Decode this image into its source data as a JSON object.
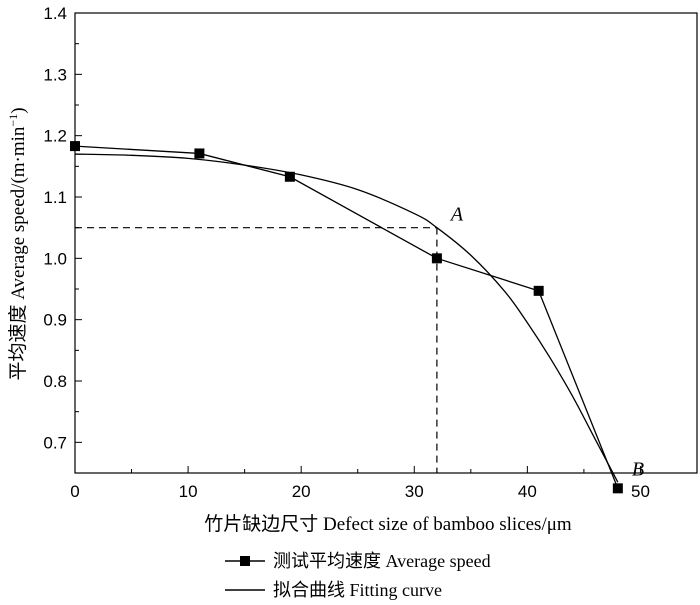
{
  "chart_data": {
    "type": "line",
    "title": "",
    "xlabel": "竹片缺边尺寸 Defect size of bamboo slices/μm",
    "ylabel_main": "平均速度 Average speed/(m·min",
    "ylabel_sup": "−1",
    "ylabel_close": ")",
    "xlim": [
      0,
      55
    ],
    "ylim": [
      0.65,
      1.4
    ],
    "x_ticks": [
      0,
      10,
      20,
      30,
      40,
      50
    ],
    "y_ticks": [
      0.7,
      0.8,
      0.9,
      1.0,
      1.1,
      1.2,
      1.3,
      1.4
    ],
    "x_tick_labels": [
      "0",
      "10",
      "20",
      "30",
      "40",
      "50"
    ],
    "y_tick_labels": [
      "0.7",
      "0.8",
      "0.9",
      "1.0",
      "1.1",
      "1.2",
      "1.3",
      "1.4"
    ],
    "grid": false,
    "legend_position": "bottom",
    "series": [
      {
        "name": "测试平均速度 Average speed",
        "style": "line-square-marker",
        "x": [
          0,
          11,
          19,
          32,
          41,
          48
        ],
        "y": [
          1.183,
          1.171,
          1.133,
          1.0,
          0.947,
          0.625
        ]
      },
      {
        "name": "拟合曲线 Fitting curve",
        "style": "line",
        "x": [
          0,
          5,
          10,
          15,
          20,
          25,
          30,
          32,
          35,
          38,
          40,
          42,
          44,
          46,
          48
        ],
        "y": [
          1.17,
          1.168,
          1.163,
          1.152,
          1.136,
          1.112,
          1.073,
          1.05,
          1.005,
          0.946,
          0.895,
          0.838,
          0.775,
          0.705,
          0.635
        ]
      }
    ],
    "annotations": [
      {
        "label": "A",
        "x": 32,
        "y": 1.05,
        "guides": true
      },
      {
        "label": "B",
        "x": 48,
        "y": 0.625,
        "guides": false
      }
    ]
  }
}
